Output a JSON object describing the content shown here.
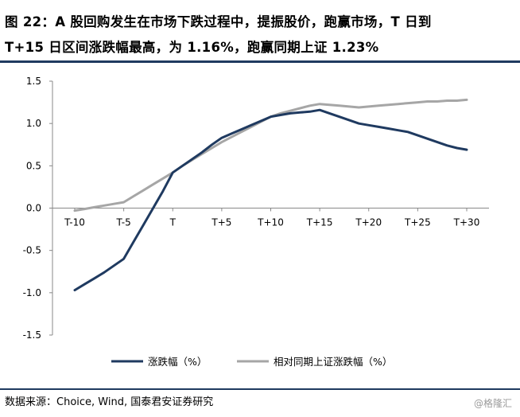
{
  "title_line1": "图 22：A 股回购发生在市场下跌过程中，提振股价，跑赢市场，T 日到",
  "title_line2": "T+15 日区间涨跌幅最高，为 1.16%，跑赢同期上证 1.23%",
  "source": "数据来源：Choice, Wind, 国泰君安证券研究",
  "watermark": "@格隆汇",
  "colors": {
    "series1": "#1f3a60",
    "series2": "#a6a6a6",
    "rule": "#1f3a60"
  },
  "chart_data": {
    "type": "line",
    "categories": [
      "T-10",
      "T-5",
      "T",
      "T+5",
      "T+10",
      "T+15",
      "T+20",
      "T+25",
      "T+30"
    ],
    "x": [
      -10,
      -9,
      -8,
      -7,
      -6,
      -5,
      -4,
      -3,
      -2,
      -1,
      0,
      1,
      2,
      3,
      4,
      5,
      6,
      7,
      8,
      9,
      10,
      11,
      12,
      13,
      14,
      15,
      16,
      17,
      18,
      19,
      20,
      21,
      22,
      23,
      24,
      25,
      26,
      27,
      28,
      29,
      30
    ],
    "series": [
      {
        "name": "涨跌幅（%）",
        "color": "#1f3a60",
        "values": [
          -0.97,
          -0.9,
          -0.83,
          -0.76,
          -0.68,
          -0.6,
          -0.4,
          -0.2,
          0.0,
          0.2,
          0.42,
          0.5,
          0.58,
          0.66,
          0.75,
          0.83,
          0.88,
          0.93,
          0.98,
          1.03,
          1.08,
          1.1,
          1.12,
          1.13,
          1.14,
          1.16,
          1.12,
          1.08,
          1.04,
          1.0,
          0.98,
          0.96,
          0.94,
          0.92,
          0.9,
          0.86,
          0.82,
          0.78,
          0.74,
          0.71,
          0.69
        ]
      },
      {
        "name": "相对同期上证涨跌幅（%）",
        "color": "#a6a6a6",
        "values": [
          -0.03,
          -0.01,
          0.01,
          0.03,
          0.05,
          0.07,
          0.14,
          0.21,
          0.28,
          0.35,
          0.42,
          0.5,
          0.57,
          0.64,
          0.71,
          0.78,
          0.84,
          0.9,
          0.96,
          1.02,
          1.08,
          1.12,
          1.15,
          1.18,
          1.21,
          1.23,
          1.22,
          1.21,
          1.2,
          1.19,
          1.2,
          1.21,
          1.22,
          1.23,
          1.24,
          1.25,
          1.26,
          1.26,
          1.27,
          1.27,
          1.28
        ]
      }
    ],
    "ylim": [
      -1.5,
      1.5
    ],
    "yticks": [
      "1.5",
      "1.0",
      "0.5",
      "0.0",
      "-0.5",
      "-1.0",
      "-1.5"
    ],
    "legend": "bottom",
    "grid": false
  }
}
